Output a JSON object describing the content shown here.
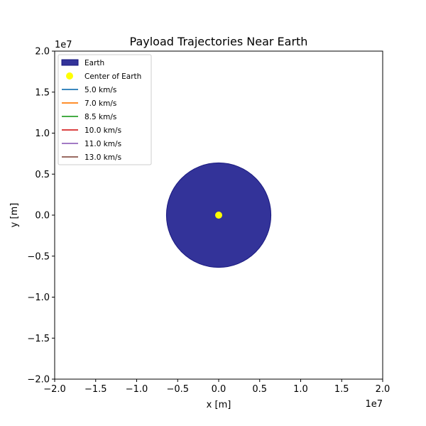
{
  "chart_data": {
    "type": "line",
    "title": "Payload Trajectories Near Earth",
    "xlabel": "x [m]",
    "ylabel": "y [m]",
    "xlim": [
      -20000000,
      20000000
    ],
    "ylim": [
      -20000000,
      20000000
    ],
    "x_offset_label": "1e7",
    "y_offset_label": "1e7",
    "xticks": [
      {
        "value": -20000000,
        "label": "−2.0"
      },
      {
        "value": -15000000,
        "label": "−1.5"
      },
      {
        "value": -10000000,
        "label": "−1.0"
      },
      {
        "value": -5000000,
        "label": "−0.5"
      },
      {
        "value": 0,
        "label": "0.0"
      },
      {
        "value": 5000000,
        "label": "0.5"
      },
      {
        "value": 10000000,
        "label": "1.0"
      },
      {
        "value": 15000000,
        "label": "1.5"
      },
      {
        "value": 20000000,
        "label": "2.0"
      }
    ],
    "yticks": [
      {
        "value": -20000000,
        "label": "−2.0"
      },
      {
        "value": -15000000,
        "label": "−1.5"
      },
      {
        "value": -10000000,
        "label": "−1.0"
      },
      {
        "value": -5000000,
        "label": "−0.5"
      },
      {
        "value": 0,
        "label": "0.0"
      },
      {
        "value": 5000000,
        "label": "0.5"
      },
      {
        "value": 10000000,
        "label": "1.0"
      },
      {
        "value": 15000000,
        "label": "1.5"
      },
      {
        "value": 20000000,
        "label": "2.0"
      }
    ],
    "grid": false,
    "legend_position": "top-left",
    "earth": {
      "label": "Earth",
      "center": [
        0,
        0
      ],
      "radius": 6371000,
      "color": "#333399",
      "edge_color": "#1a1a80"
    },
    "center_point": {
      "label": "Center of Earth",
      "x": 0,
      "y": 0,
      "color": "#ffff00"
    },
    "series": [
      {
        "name": "5.0 km/s",
        "color": "#1f77b4",
        "points": []
      },
      {
        "name": "7.0 km/s",
        "color": "#ff7f0e",
        "points": []
      },
      {
        "name": "8.5 km/s",
        "color": "#2ca02c",
        "points": []
      },
      {
        "name": "10.0 km/s",
        "color": "#d62728",
        "points": []
      },
      {
        "name": "11.0 km/s",
        "color": "#9467bd",
        "points": []
      },
      {
        "name": "13.0 km/s",
        "color": "#8c564b",
        "points": []
      }
    ]
  }
}
